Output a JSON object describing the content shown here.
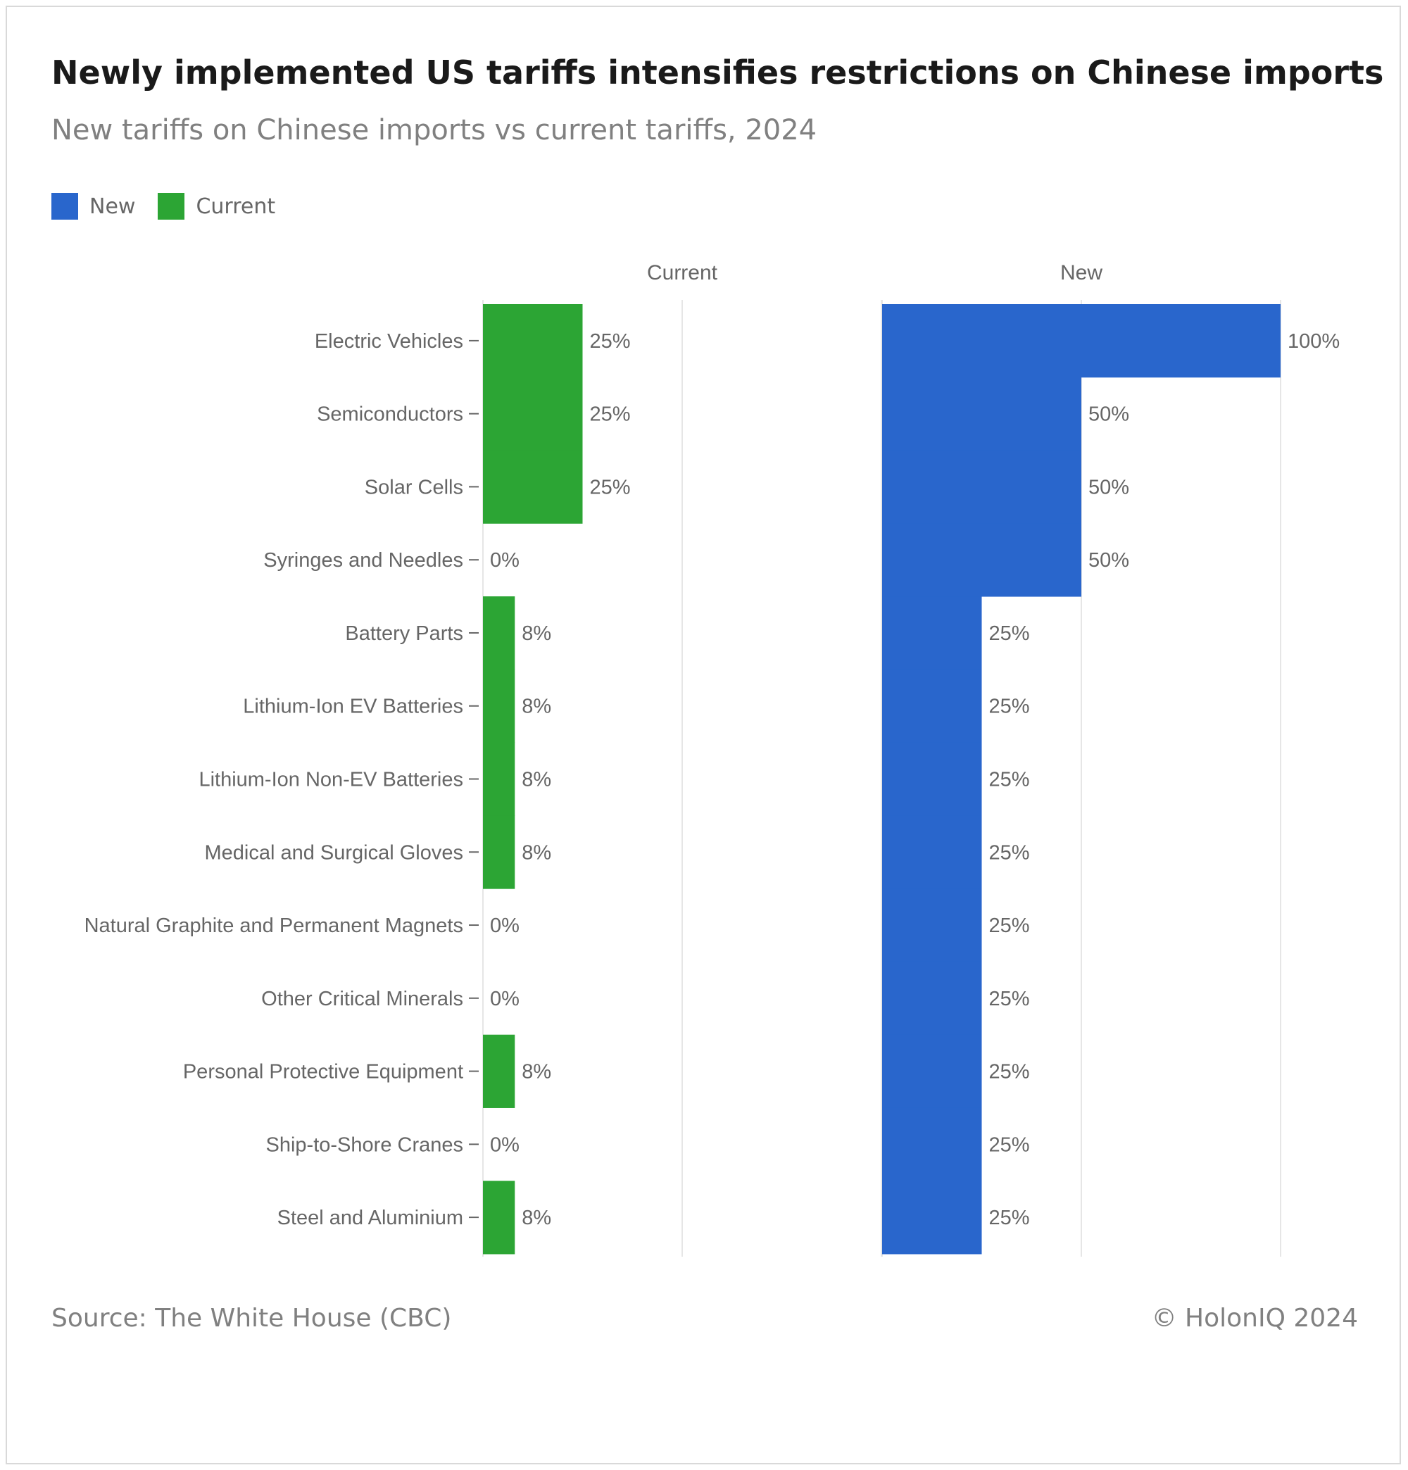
{
  "chart_data": {
    "type": "bar",
    "orientation": "horizontal",
    "layout": "small-multiples",
    "title": "Newly implemented US tariffs intensifies restrictions on Chinese imports",
    "subtitle": "New tariffs on Chinese imports vs current tariffs, 2024",
    "categories": [
      "Electric Vehicles",
      "Semiconductors",
      "Solar Cells",
      "Syringes and Needles",
      "Battery Parts",
      "Lithium-Ion EV Batteries",
      "Lithium-Ion Non-EV Batteries",
      "Medical and Surgical Gloves",
      "Natural Graphite and Permanent Magnets",
      "Other Critical Minerals",
      "Personal Protective Equipment",
      "Ship-to-Shore Cranes",
      "Steel and Aluminium"
    ],
    "series": [
      {
        "name": "Current",
        "color": "#2ca534",
        "values": [
          25,
          25,
          25,
          0,
          8,
          8,
          8,
          8,
          0,
          0,
          8,
          0,
          8
        ],
        "labels": [
          "25%",
          "25%",
          "25%",
          "0%",
          "8%",
          "8%",
          "8%",
          "8%",
          "0%",
          "0%",
          "8%",
          "0%",
          "8%"
        ]
      },
      {
        "name": "New",
        "color": "#2966cc",
        "values": [
          100,
          50,
          50,
          50,
          25,
          25,
          25,
          25,
          25,
          25,
          25,
          25,
          25
        ],
        "labels": [
          "100%",
          "50%",
          "50%",
          "50%",
          "25%",
          "25%",
          "25%",
          "25%",
          "25%",
          "25%",
          "25%",
          "25%",
          "25%"
        ]
      }
    ],
    "panels": [
      "Current",
      "New"
    ],
    "xlim": [
      0,
      100
    ],
    "grid": true,
    "legend": {
      "placement": "top-left",
      "entries": [
        "New",
        "Current"
      ]
    },
    "source": "Source: The White House (CBC)",
    "credit": "© HolonIQ 2024"
  }
}
